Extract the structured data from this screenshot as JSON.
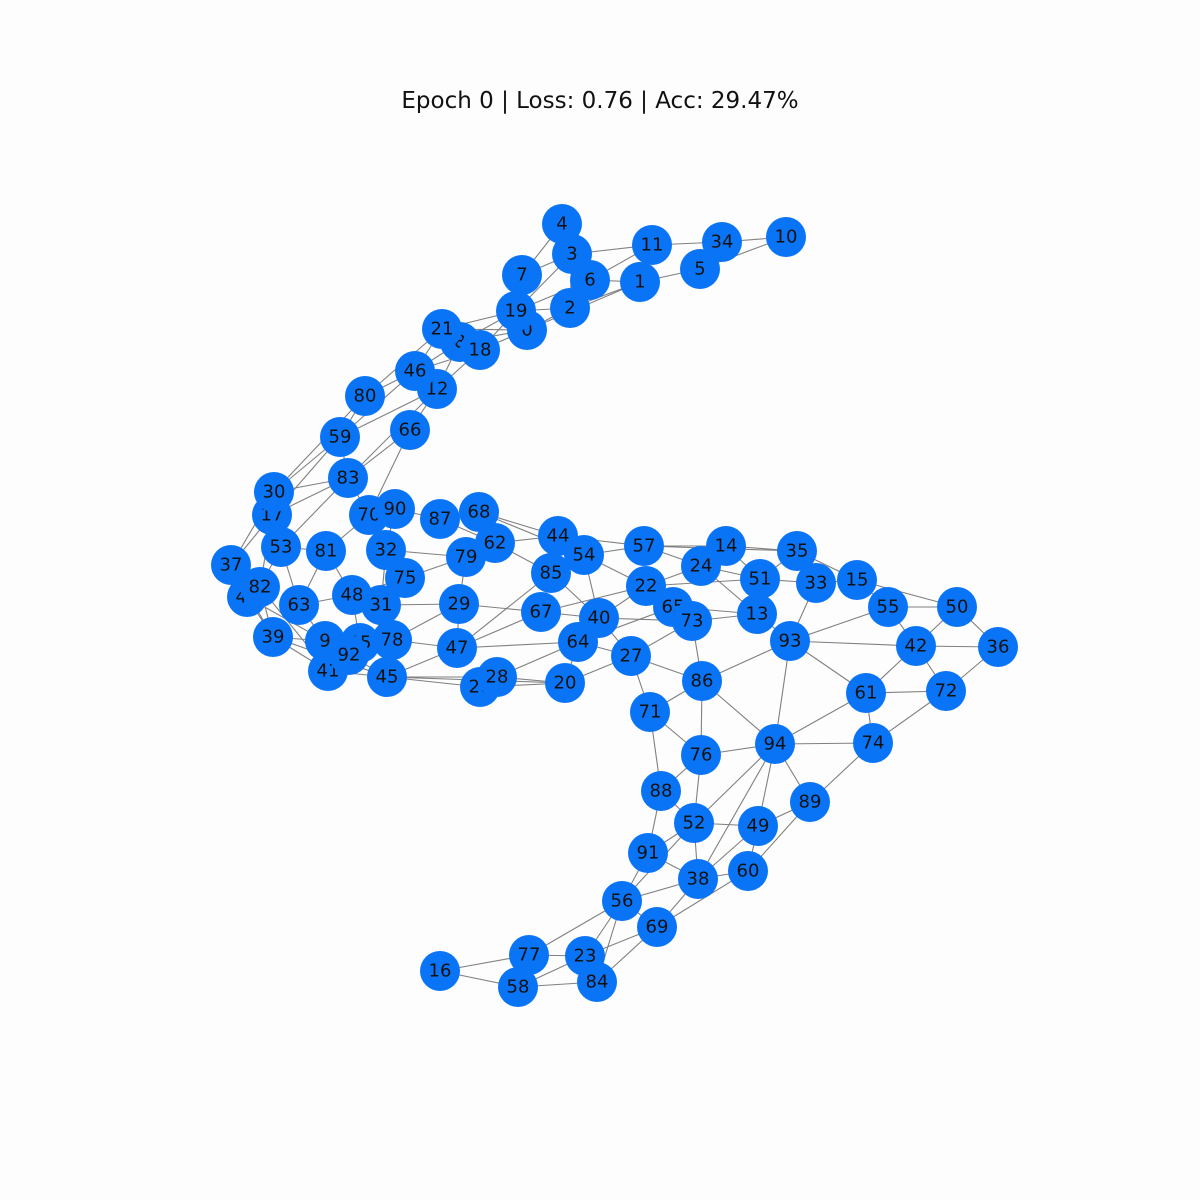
{
  "title": "Epoch 0 | Loss: 0.76 | Acc: 29.47%",
  "node_color": "#0a74f7",
  "edge_color": "#808080",
  "nodes": [
    "0",
    "1",
    "2",
    "3",
    "4",
    "5",
    "6",
    "7",
    "8",
    "9",
    "10",
    "11",
    "12",
    "13",
    "14",
    "15",
    "16",
    "17",
    "18",
    "19",
    "20",
    "21",
    "22",
    "23",
    "24",
    "25",
    "26",
    "27",
    "28",
    "29",
    "30",
    "31",
    "32",
    "33",
    "34",
    "35",
    "36",
    "37",
    "38",
    "39",
    "40",
    "41",
    "42",
    "43",
    "44",
    "45",
    "46",
    "47",
    "48",
    "49",
    "50",
    "51",
    "52",
    "53",
    "54",
    "55",
    "56",
    "57",
    "58",
    "59",
    "60",
    "61",
    "62",
    "63",
    "64",
    "65",
    "66",
    "67",
    "68",
    "69",
    "70",
    "71",
    "72",
    "73",
    "74",
    "75",
    "76",
    "77",
    "78",
    "79",
    "80",
    "81",
    "82",
    "83",
    "84",
    "85",
    "86",
    "87",
    "88",
    "89",
    "90",
    "91",
    "92",
    "93",
    "94"
  ]
}
